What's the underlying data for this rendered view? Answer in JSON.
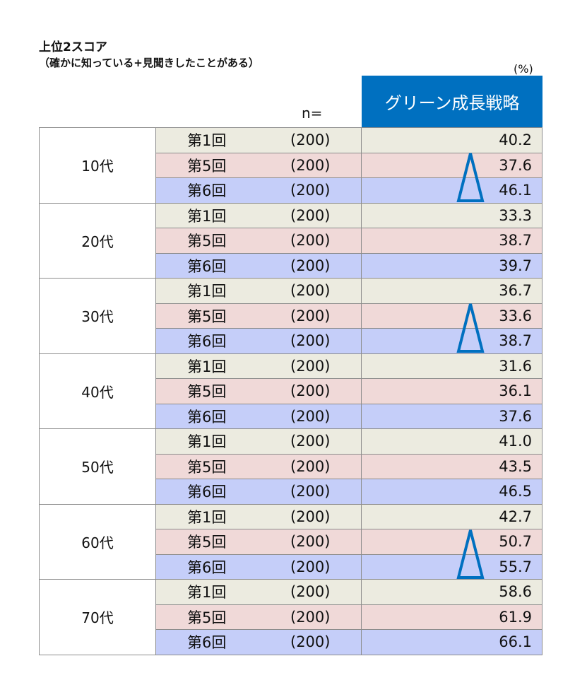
{
  "title": "上位2スコア",
  "subtitle": "（確かに知っている+見聞きしたことがある）",
  "unit": "(%)",
  "n_label": "n=",
  "column_header": "グリーン成長戦略",
  "accent_color": "#0070c0",
  "row_colors": {
    "第1回": "#ecebe0",
    "第5回": "#f0d9d8",
    "第6回": "#c5cef9"
  },
  "groups": [
    {
      "age": "10代",
      "significant_increase": true,
      "rows": [
        {
          "round": "第1回",
          "n": "(200)",
          "value": "40.2"
        },
        {
          "round": "第5回",
          "n": "(200)",
          "value": "37.6"
        },
        {
          "round": "第6回",
          "n": "(200)",
          "value": "46.1"
        }
      ]
    },
    {
      "age": "20代",
      "significant_increase": false,
      "rows": [
        {
          "round": "第1回",
          "n": "(200)",
          "value": "33.3"
        },
        {
          "round": "第5回",
          "n": "(200)",
          "value": "38.7"
        },
        {
          "round": "第6回",
          "n": "(200)",
          "value": "39.7"
        }
      ]
    },
    {
      "age": "30代",
      "significant_increase": true,
      "rows": [
        {
          "round": "第1回",
          "n": "(200)",
          "value": "36.7"
        },
        {
          "round": "第5回",
          "n": "(200)",
          "value": "33.6"
        },
        {
          "round": "第6回",
          "n": "(200)",
          "value": "38.7"
        }
      ]
    },
    {
      "age": "40代",
      "significant_increase": false,
      "rows": [
        {
          "round": "第1回",
          "n": "(200)",
          "value": "31.6"
        },
        {
          "round": "第5回",
          "n": "(200)",
          "value": "36.1"
        },
        {
          "round": "第6回",
          "n": "(200)",
          "value": "37.6"
        }
      ]
    },
    {
      "age": "50代",
      "significant_increase": false,
      "rows": [
        {
          "round": "第1回",
          "n": "(200)",
          "value": "41.0"
        },
        {
          "round": "第5回",
          "n": "(200)",
          "value": "43.5"
        },
        {
          "round": "第6回",
          "n": "(200)",
          "value": "46.5"
        }
      ]
    },
    {
      "age": "60代",
      "significant_increase": true,
      "rows": [
        {
          "round": "第1回",
          "n": "(200)",
          "value": "42.7"
        },
        {
          "round": "第5回",
          "n": "(200)",
          "value": "50.7"
        },
        {
          "round": "第6回",
          "n": "(200)",
          "value": "55.7"
        }
      ]
    },
    {
      "age": "70代",
      "significant_increase": false,
      "rows": [
        {
          "round": "第1回",
          "n": "(200)",
          "value": "58.6"
        },
        {
          "round": "第5回",
          "n": "(200)",
          "value": "61.9"
        },
        {
          "round": "第6回",
          "n": "(200)",
          "value": "66.1"
        }
      ]
    }
  ]
}
